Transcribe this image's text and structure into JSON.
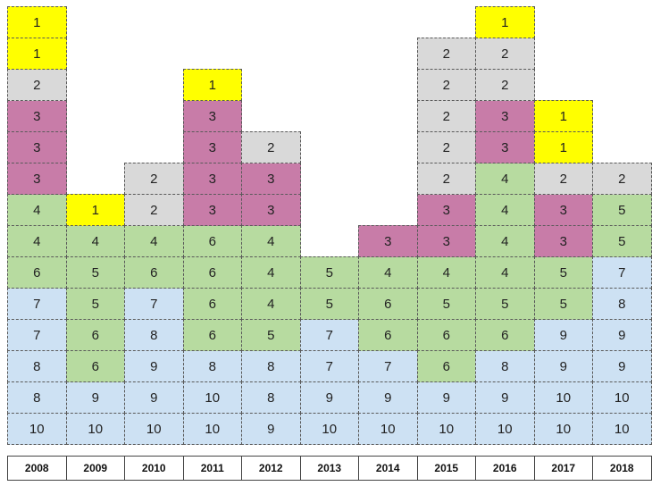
{
  "chart_data": {
    "type": "table",
    "title": "",
    "xlabel": "",
    "ylabel": "",
    "categories": [
      "2008",
      "2009",
      "2010",
      "2011",
      "2012",
      "2013",
      "2014",
      "2015",
      "2016",
      "2017",
      "2018"
    ],
    "columns": [
      {
        "year": "2008",
        "values": [
          10,
          8,
          8,
          7,
          7,
          6,
          4,
          4,
          3,
          3,
          3,
          2,
          1,
          1
        ]
      },
      {
        "year": "2009",
        "values": [
          10,
          9,
          6,
          6,
          5,
          5,
          4,
          1
        ]
      },
      {
        "year": "2010",
        "values": [
          10,
          9,
          9,
          8,
          7,
          6,
          4,
          2,
          2
        ]
      },
      {
        "year": "2011",
        "values": [
          10,
          10,
          8,
          6,
          6,
          6,
          6,
          3,
          3,
          3,
          3,
          1
        ]
      },
      {
        "year": "2012",
        "values": [
          9,
          8,
          8,
          5,
          4,
          4,
          4,
          3,
          3,
          2
        ]
      },
      {
        "year": "2013",
        "values": [
          10,
          9,
          7,
          7,
          5,
          5
        ]
      },
      {
        "year": "2014",
        "values": [
          10,
          9,
          7,
          6,
          6,
          4,
          3
        ]
      },
      {
        "year": "2015",
        "values": [
          10,
          9,
          6,
          6,
          5,
          4,
          3,
          3,
          2,
          2,
          2,
          2,
          2
        ]
      },
      {
        "year": "2016",
        "values": [
          10,
          9,
          8,
          6,
          5,
          4,
          4,
          4,
          4,
          3,
          3,
          2,
          2,
          1
        ]
      },
      {
        "year": "2017",
        "values": [
          10,
          10,
          9,
          9,
          5,
          5,
          3,
          3,
          2,
          1,
          1
        ]
      },
      {
        "year": "2018",
        "values": [
          10,
          10,
          9,
          9,
          8,
          7,
          5,
          5,
          2
        ]
      }
    ],
    "color_groups": {
      "1": "#ffff00",
      "2": "#d9d9d9",
      "3": "#c87ca8",
      "4-6": "#b7dba0",
      "7-10": "#cde1f3"
    },
    "green_overrides": [
      {
        "year": "2009",
        "value": 6
      },
      {
        "year": "2011",
        "value": 6
      },
      {
        "year": "2012",
        "value": 5
      },
      {
        "year": "2015",
        "value": 6
      }
    ],
    "blue_overrides": [
      {
        "year": "2008",
        "value": 7
      },
      {
        "year": "2010",
        "value": 7
      },
      {
        "year": "2013",
        "value": 7
      },
      {
        "year": "2014",
        "value": 7
      },
      {
        "year": "2016",
        "value": 8
      },
      {
        "year": "2017",
        "value": 9
      },
      {
        "year": "2018",
        "value": 7
      }
    ]
  }
}
